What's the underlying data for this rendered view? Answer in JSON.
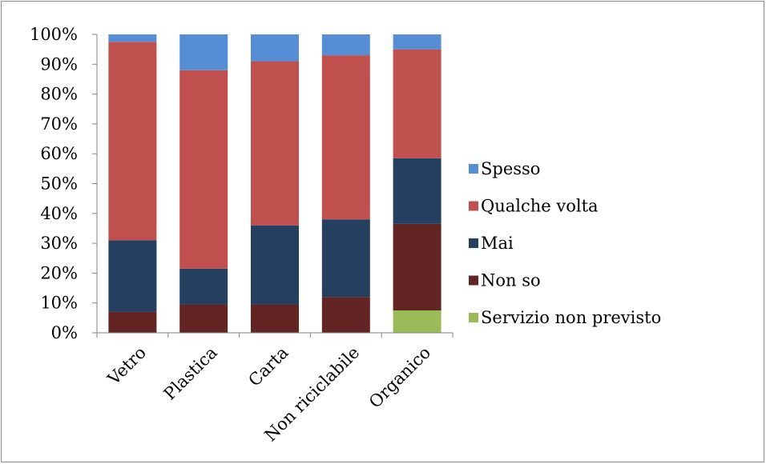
{
  "chart_data": {
    "type": "bar",
    "stacked": true,
    "percent": true,
    "title": "",
    "xlabel": "",
    "ylabel": "",
    "ylim": [
      0,
      100
    ],
    "y_ticks": [
      "0%",
      "10%",
      "20%",
      "30%",
      "40%",
      "50%",
      "60%",
      "70%",
      "80%",
      "90%",
      "100%"
    ],
    "grid": false,
    "legend_position": "right",
    "categories": [
      "Vetro",
      "Plastica",
      "Carta",
      "Non riciclabile",
      "Organico"
    ],
    "series": [
      {
        "name": "Servizio non previsto",
        "color": "#9BBB59",
        "values": [
          0,
          0,
          0,
          0,
          7.5
        ]
      },
      {
        "name": "Non so",
        "color": "#632523",
        "values": [
          7,
          9.5,
          9.5,
          12,
          29
        ]
      },
      {
        "name": "Mai",
        "color": "#243F60",
        "values": [
          24,
          12,
          26.5,
          26,
          22
        ]
      },
      {
        "name": "Qualche volta",
        "color": "#C0504D",
        "values": [
          66.5,
          66.5,
          55,
          55,
          36.5
        ]
      },
      {
        "name": "Spesso",
        "color": "#558ED5",
        "values": [
          2.5,
          12,
          9,
          7,
          5
        ]
      }
    ],
    "legend_order": [
      "Spesso",
      "Qualche volta",
      "Mai",
      "Non so",
      "Servizio non previsto"
    ]
  }
}
